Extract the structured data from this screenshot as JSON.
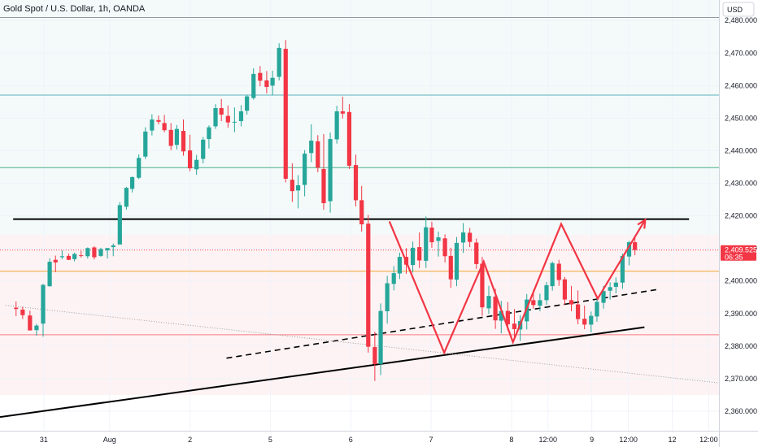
{
  "chart_data": {
    "type": "candlestick",
    "title": "Gold Spot / U.S. Dollar, 1h, OANDA",
    "currency": "USD",
    "y_ticks": [
      "2,480.000",
      "2,470.000",
      "2,460.000",
      "2,450.000",
      "2,440.000",
      "2,430.000",
      "2,420.000",
      "2,410.000",
      "2,400.000",
      "2,390.000",
      "2,380.000",
      "2,370.000",
      "2,360.000"
    ],
    "y_tick_values": [
      2480,
      2470,
      2460,
      2450,
      2440,
      2430,
      2420,
      2410,
      2400,
      2390,
      2380,
      2370,
      2360
    ],
    "ylim": [
      2354.0,
      2486.3
    ],
    "x_ticks": [
      "31",
      "Aug",
      "2",
      "5",
      "6",
      "7",
      "8",
      "12:00",
      "9",
      "12:00",
      "12",
      "12:00"
    ],
    "x_tick_values": [
      6,
      15,
      26,
      37,
      48,
      59,
      70,
      75,
      81,
      86,
      92,
      97
    ],
    "xlim": [
      0,
      98.4
    ],
    "last_price": "2,409.525",
    "countdown": "06:35",
    "colors": {
      "up": "#26a69a",
      "down": "#f23645",
      "pattern": "#f23645",
      "trend": "#000000"
    },
    "horizontal_levels": [
      {
        "y": 2419.0,
        "color": "#000000",
        "style": "solid-thick",
        "x_from": 1.8,
        "x_to": 94.3
      },
      {
        "y": 2457.1,
        "color": "#5bb3bd",
        "style": "solid"
      },
      {
        "y": 2434.8,
        "color": "#4caf8e",
        "style": "solid"
      },
      {
        "y": 2403.0,
        "color": "#f0a830",
        "style": "solid"
      },
      {
        "y": 2383.5,
        "color": "#f77c80",
        "style": "solid"
      },
      {
        "y": 2409.5,
        "color": "#f23645",
        "style": "dotted"
      }
    ],
    "trend_lines": [
      {
        "from": [
          0.0,
          2358.2
        ],
        "to": [
          88.2,
          2385.8
        ],
        "color": "#000000",
        "style": "solid"
      },
      {
        "from": [
          31.0,
          2376.3
        ],
        "to": [
          90.3,
          2397.5
        ],
        "color": "#000000",
        "style": "dashed"
      },
      {
        "from": [
          0.8,
          2392.5
        ],
        "to": [
          98.4,
          2368.7
        ],
        "color": "#9e9e9e",
        "style": "dotted"
      }
    ],
    "pattern_path": [
      [
        53.3,
        2418.3
      ],
      [
        60.8,
        2378.0
      ],
      [
        66.2,
        2406.0
      ],
      [
        70.2,
        2381.2
      ],
      [
        76.8,
        2417.5
      ],
      [
        81.8,
        2394.6
      ],
      [
        88.3,
        2418.8
      ]
    ],
    "candles": [
      [
        2.2,
        2391.8,
        2393.7,
        2389.2,
        2391.4
      ],
      [
        3.1,
        2391.2,
        2392.1,
        2388.3,
        2389.5
      ],
      [
        4.1,
        2389.4,
        2390.9,
        2384.9,
        2384.8
      ],
      [
        5.0,
        2384.9,
        2386.8,
        2383.2,
        2386.3
      ],
      [
        5.9,
        2386.9,
        2399.1,
        2382.9,
        2398.8
      ],
      [
        6.8,
        2398.4,
        2407.0,
        2398.2,
        2405.9
      ],
      [
        7.6,
        2406.5,
        2407.8,
        2402.7,
        2405.7
      ],
      [
        8.5,
        2407.3,
        2409.4,
        2406.7,
        2407.6
      ],
      [
        9.4,
        2407.7,
        2408.4,
        2406.4,
        2406.5
      ],
      [
        10.2,
        2406.7,
        2408.7,
        2406.0,
        2408.3
      ],
      [
        11.1,
        2407.9,
        2409.3,
        2407.2,
        2407.8
      ],
      [
        12.0,
        2407.6,
        2410.3,
        2406.9,
        2410.1
      ],
      [
        12.9,
        2410.3,
        2410.7,
        2406.6,
        2407.3
      ],
      [
        13.8,
        2407.7,
        2410.2,
        2407.4,
        2409.8
      ],
      [
        14.7,
        2409.4,
        2410.1,
        2406.9,
        2410.1
      ],
      [
        15.5,
        2410.4,
        2411.5,
        2407.6,
        2410.9
      ],
      [
        16.4,
        2411.2,
        2424.2,
        2411.4,
        2423.3
      ],
      [
        17.3,
        2422.8,
        2428.9,
        2421.9,
        2428.6
      ],
      [
        18.1,
        2428.3,
        2432.1,
        2427.2,
        2431.9
      ],
      [
        19.0,
        2431.7,
        2438.9,
        2431.3,
        2437.8
      ],
      [
        19.9,
        2438.2,
        2447.2,
        2437.5,
        2445.9
      ],
      [
        20.8,
        2446.2,
        2451.2,
        2444.7,
        2449.6
      ],
      [
        21.7,
        2449.4,
        2450.8,
        2448.1,
        2448.9
      ],
      [
        22.5,
        2448.5,
        2451.0,
        2445.7,
        2446.3
      ],
      [
        23.4,
        2446.4,
        2448.5,
        2440.2,
        2441.5
      ],
      [
        24.2,
        2441.8,
        2447.9,
        2440.4,
        2446.7
      ],
      [
        25.1,
        2446.1,
        2449.6,
        2438.5,
        2439.8
      ],
      [
        26.0,
        2440.1,
        2444.9,
        2433.7,
        2434.6
      ],
      [
        26.9,
        2434.3,
        2438.7,
        2432.6,
        2437.2
      ],
      [
        27.8,
        2437.5,
        2444.2,
        2436.1,
        2443.4
      ],
      [
        28.6,
        2443.6,
        2447.8,
        2440.7,
        2447.2
      ],
      [
        29.5,
        2447.5,
        2454.3,
        2446.7,
        2453.1
      ],
      [
        30.3,
        2453.1,
        2455.9,
        2449.1,
        2451.1
      ],
      [
        31.2,
        2450.7,
        2453.9,
        2447.1,
        2448.7
      ],
      [
        32.1,
        2448.9,
        2453.3,
        2445.7,
        2448.9
      ],
      [
        33.0,
        2449.1,
        2454.0,
        2447.5,
        2452.1
      ],
      [
        33.8,
        2452.3,
        2457.2,
        2451.1,
        2456.7
      ],
      [
        34.7,
        2456.2,
        2465.3,
        2455.7,
        2463.6
      ],
      [
        35.6,
        2463.9,
        2466.0,
        2459.8,
        2461.5
      ],
      [
        36.5,
        2461.6,
        2464.5,
        2457.6,
        2459.6
      ],
      [
        37.3,
        2460.0,
        2464.6,
        2457.0,
        2462.4
      ],
      [
        38.2,
        2462.7,
        2473.0,
        2461.6,
        2471.6
      ],
      [
        39.1,
        2471.3,
        2474.0,
        2430.3,
        2431.4
      ],
      [
        40.0,
        2431.1,
        2436.1,
        2424.3,
        2427.6
      ],
      [
        40.8,
        2427.8,
        2432.5,
        2422.3,
        2429.4
      ],
      [
        41.7,
        2429.5,
        2440.2,
        2426.0,
        2439.1
      ],
      [
        42.6,
        2439.3,
        2448.1,
        2436.5,
        2443.1
      ],
      [
        43.5,
        2442.9,
        2444.8,
        2433.4,
        2434.8
      ],
      [
        44.3,
        2434.4,
        2445.1,
        2421.9,
        2423.9
      ],
      [
        45.2,
        2424.5,
        2445.6,
        2421.0,
        2443.6
      ],
      [
        46.1,
        2443.5,
        2453.8,
        2442.2,
        2452.1
      ],
      [
        46.9,
        2452.1,
        2456.6,
        2449.9,
        2451.4
      ],
      [
        47.8,
        2451.9,
        2454.3,
        2434.4,
        2435.4
      ],
      [
        48.7,
        2435.6,
        2438.8,
        2422.9,
        2424.8
      ],
      [
        49.5,
        2424.8,
        2429.2,
        2415.2,
        2417.4
      ],
      [
        50.4,
        2417.6,
        2420.3,
        2378.0,
        2379.8
      ],
      [
        51.3,
        2379.7,
        2384.4,
        2369.3,
        2374.5
      ],
      [
        52.1,
        2374.5,
        2393.1,
        2371.1,
        2390.8
      ],
      [
        53.0,
        2390.7,
        2401.6,
        2386.9,
        2399.3
      ],
      [
        53.9,
        2399.1,
        2404.6,
        2397.1,
        2402.4
      ],
      [
        54.7,
        2402.3,
        2408.7,
        2400.6,
        2407.4
      ],
      [
        55.6,
        2407.4,
        2410.1,
        2402.2,
        2405.0
      ],
      [
        56.5,
        2404.9,
        2412.1,
        2402.6,
        2410.2
      ],
      [
        57.4,
        2410.4,
        2414.9,
        2404.0,
        2406.3
      ],
      [
        58.3,
        2406.2,
        2419.8,
        2404.0,
        2416.5
      ],
      [
        59.1,
        2416.4,
        2418.2,
        2410.2,
        2411.9
      ],
      [
        60.0,
        2412.3,
        2415.2,
        2407.5,
        2413.4
      ],
      [
        60.9,
        2413.1,
        2414.3,
        2405.7,
        2407.6
      ],
      [
        61.7,
        2407.7,
        2410.2,
        2397.9,
        2400.5
      ],
      [
        62.5,
        2400.4,
        2413.5,
        2398.4,
        2411.7
      ],
      [
        63.4,
        2411.8,
        2417.8,
        2408.6,
        2414.9
      ],
      [
        64.3,
        2414.8,
        2416.3,
        2410.4,
        2412.0
      ],
      [
        65.2,
        2411.8,
        2413.0,
        2403.7,
        2405.2
      ],
      [
        66.0,
        2405.3,
        2407.4,
        2389.3,
        2391.9
      ],
      [
        66.9,
        2391.6,
        2398.5,
        2389.9,
        2395.4
      ],
      [
        67.8,
        2395.2,
        2397.6,
        2385.3,
        2387.9
      ],
      [
        68.6,
        2387.8,
        2393.9,
        2383.9,
        2390.8
      ],
      [
        69.5,
        2390.8,
        2393.5,
        2384.8,
        2386.7
      ],
      [
        70.4,
        2386.9,
        2391.4,
        2382.0,
        2385.2
      ],
      [
        71.2,
        2385.1,
        2389.5,
        2381.6,
        2387.7
      ],
      [
        72.1,
        2387.6,
        2396.0,
        2385.1,
        2394.3
      ],
      [
        73.0,
        2394.1,
        2397.3,
        2391.5,
        2392.6
      ],
      [
        73.9,
        2392.4,
        2396.1,
        2390.7,
        2394.1
      ],
      [
        74.8,
        2394.1,
        2399.7,
        2392.7,
        2398.7
      ],
      [
        75.6,
        2398.4,
        2406.0,
        2397.0,
        2405.5
      ],
      [
        76.5,
        2405.3,
        2406.5,
        2398.5,
        2400.3
      ],
      [
        77.3,
        2400.5,
        2401.2,
        2392.6,
        2394.3
      ],
      [
        78.2,
        2394.1,
        2398.5,
        2390.7,
        2392.8
      ],
      [
        79.1,
        2392.8,
        2397.1,
        2386.7,
        2388.3
      ],
      [
        80.0,
        2388.4,
        2392.4,
        2385.2,
        2386.6
      ],
      [
        80.9,
        2386.6,
        2390.6,
        2384.2,
        2389.3
      ],
      [
        81.7,
        2389.1,
        2395.5,
        2387.5,
        2393.6
      ],
      [
        82.6,
        2393.3,
        2398.5,
        2391.5,
        2396.9
      ],
      [
        83.5,
        2397.0,
        2399.6,
        2394.3,
        2398.1
      ],
      [
        84.3,
        2398.2,
        2401.1,
        2396.2,
        2399.5
      ],
      [
        85.2,
        2399.5,
        2408.4,
        2397.6,
        2407.7
      ],
      [
        86.1,
        2407.5,
        2412.3,
        2404.8,
        2411.9
      ],
      [
        86.9,
        2411.9,
        2413.9,
        2407.9,
        2409.5
      ]
    ]
  }
}
